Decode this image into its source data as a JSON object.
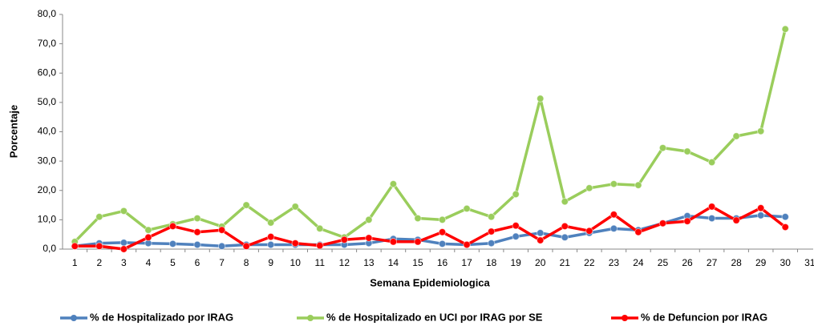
{
  "chart_data": {
    "type": "line",
    "y_label": "Porcentaje",
    "x_label": "Semana Epidemiologica",
    "categories": [
      "1",
      "2",
      "3",
      "4",
      "5",
      "6",
      "7",
      "8",
      "9",
      "10",
      "11",
      "12",
      "13",
      "14",
      "15",
      "16",
      "17",
      "18",
      "19",
      "20",
      "21",
      "22",
      "23",
      "24",
      "25",
      "26",
      "27",
      "28",
      "29",
      "30",
      "31"
    ],
    "ylim": [
      0,
      80
    ],
    "yticks": [
      {
        "value": 0,
        "label": "0,0"
      },
      {
        "value": 10,
        "label": "10,0"
      },
      {
        "value": 20,
        "label": "20,0"
      },
      {
        "value": 30,
        "label": "30,0"
      },
      {
        "value": 40,
        "label": "40,0"
      },
      {
        "value": 50,
        "label": "50,0"
      },
      {
        "value": 60,
        "label": "60,0"
      },
      {
        "value": 70,
        "label": "70,0"
      },
      {
        "value": 80,
        "label": "80,0"
      }
    ],
    "grid": false,
    "legend": "bottom",
    "series": [
      {
        "name": "% de Hospitalizado por IRAG",
        "color": "#4f81bd",
        "values": [
          1.0,
          2.0,
          2.2,
          2.0,
          1.8,
          1.5,
          1.0,
          1.5,
          1.5,
          1.5,
          1.5,
          1.5,
          2.0,
          3.5,
          3.2,
          1.8,
          1.5,
          2.0,
          4.3,
          5.5,
          4.0,
          5.5,
          7.0,
          6.5,
          8.8,
          11.3,
          10.5,
          10.5,
          11.5,
          11.0,
          null
        ]
      },
      {
        "name": "% de Hospitalizado en UCI por IRAG por SE",
        "color": "#9acd5c",
        "values": [
          2.5,
          11.0,
          13.0,
          6.5,
          8.5,
          10.5,
          7.7,
          15.0,
          9.0,
          14.5,
          7.0,
          4.0,
          10.0,
          22.2,
          10.5,
          10.0,
          13.8,
          11.0,
          18.7,
          51.3,
          16.2,
          20.8,
          22.2,
          21.8,
          34.5,
          33.3,
          29.6,
          38.5,
          40.2,
          75.0,
          null
        ]
      },
      {
        "name": "% de Defuncion por IRAG",
        "color": "#ff0000",
        "values": [
          1.0,
          1.0,
          0.0,
          4.0,
          7.8,
          5.8,
          6.5,
          1.0,
          4.2,
          2.0,
          1.2,
          3.2,
          3.8,
          2.5,
          2.5,
          5.8,
          1.5,
          6.0,
          8.0,
          3.0,
          7.8,
          6.2,
          11.8,
          5.8,
          8.8,
          9.5,
          14.5,
          9.8,
          14.0,
          7.5,
          null
        ]
      }
    ]
  }
}
